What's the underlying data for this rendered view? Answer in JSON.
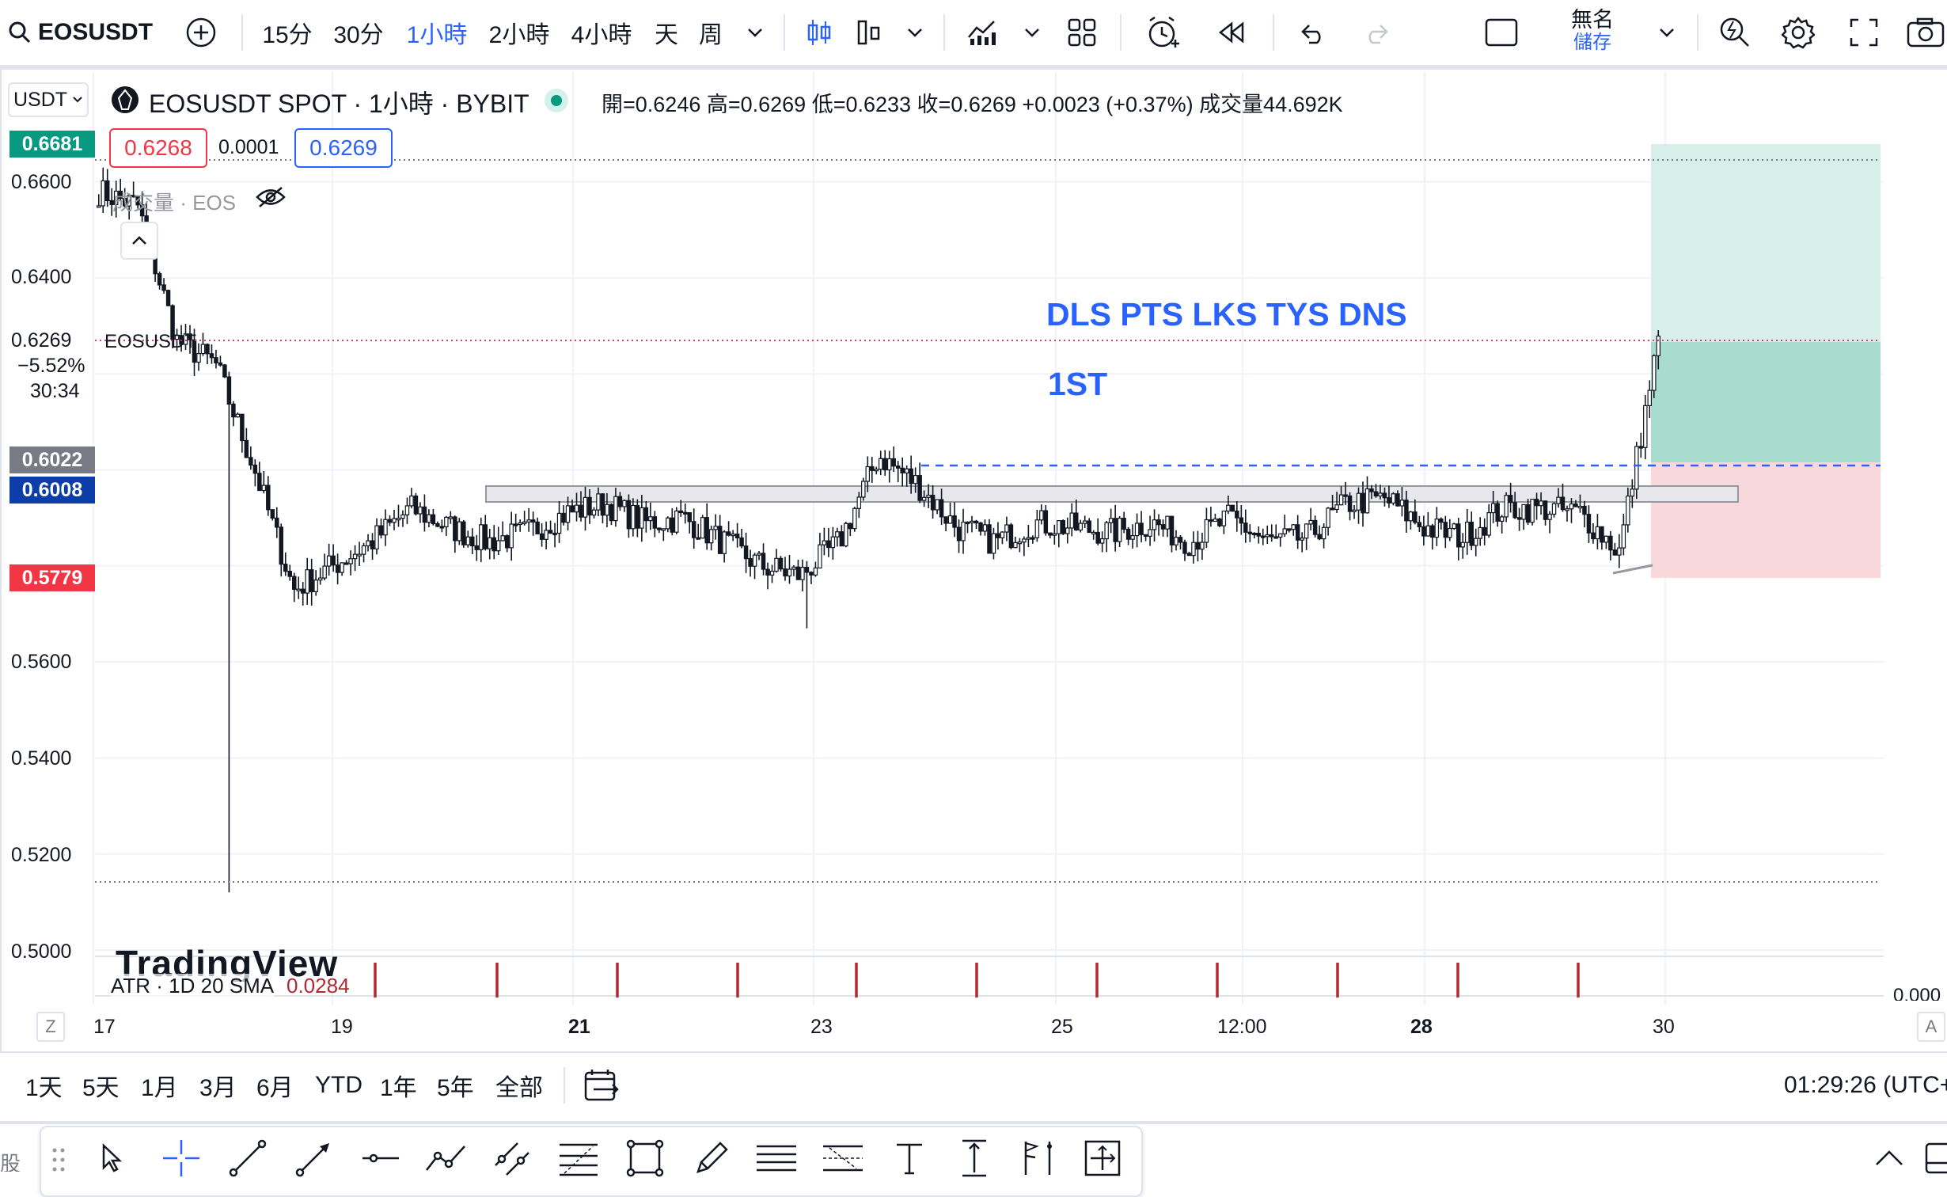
{
  "toolbar": {
    "symbol": "EOSUSDT",
    "intervals": [
      "15分",
      "30分",
      "1小時",
      "2小時",
      "4小時",
      "天",
      "周"
    ],
    "active_interval": "1小時",
    "layout_name": "無名",
    "save_label": "儲存"
  },
  "legend": {
    "currency": "USDT",
    "title": "EOSUSDT SPOT · 1小時 · BYBIT",
    "ohlc": "開=0.6246 高=0.6269 低=0.6233 收=0.6269 +0.0023 (+0.37%) 成交量44.692K",
    "bid": "0.6268",
    "spread": "0.0001",
    "ask": "0.6269",
    "volume_label": "成交量 · EOS"
  },
  "price_axis": {
    "ticks": [
      "0.6600",
      "0.6400",
      "0.5600",
      "0.5400",
      "0.5200",
      "0.5000"
    ],
    "tags": {
      "top": "0.6681",
      "current": "0.6269",
      "current_change": "−5.52%",
      "countdown": "30:34",
      "symbol_label": "EOSUSDT",
      "gray": "0.6022",
      "blue": "0.6008",
      "red": "0.5779"
    },
    "bottom_value": "0.000"
  },
  "time_axis": {
    "labels": [
      "17",
      "19",
      "21",
      "23",
      "25",
      "12:00",
      "28",
      "30"
    ]
  },
  "annotations": {
    "text1": "DLS PTS LKS TYS DNS",
    "text2": "1ST"
  },
  "indicator": {
    "name": "ATR · 1D 20 SMA",
    "value": "0.0284"
  },
  "watermark": "TradingView",
  "ranges": [
    "1天",
    "5天",
    "1月",
    "3月",
    "6月",
    "YTD",
    "1年",
    "5年",
    "全部"
  ],
  "clock": "01:29:26 (UTC+",
  "colors": {
    "up_green": "#089981",
    "down_red": "#f23645",
    "blue": "#2962ff",
    "annotation_blue": "#2962ff"
  },
  "chart_data": {
    "type": "candlestick",
    "title": "EOSUSDT SPOT · 1小時 · BYBIT",
    "ylim": [
      0.5,
      0.67
    ],
    "x_labels": [
      "17",
      "19",
      "21",
      "23",
      "25",
      "12:00",
      "28",
      "30"
    ],
    "close_path": [
      0.658,
      0.655,
      0.6269,
      0.622,
      0.6,
      0.575,
      0.58,
      0.585,
      0.592,
      0.588,
      0.585,
      0.587,
      0.591,
      0.593,
      0.589,
      0.59,
      0.585,
      0.58,
      0.578,
      0.585,
      0.603,
      0.597,
      0.588,
      0.585,
      0.589,
      0.588,
      0.587,
      0.589,
      0.585,
      0.59,
      0.585,
      0.586,
      0.593,
      0.594,
      0.588,
      0.586,
      0.592,
      0.592,
      0.591,
      0.583,
      0.6269
    ],
    "resistance": 0.6022,
    "last_close": 0.6269
  }
}
